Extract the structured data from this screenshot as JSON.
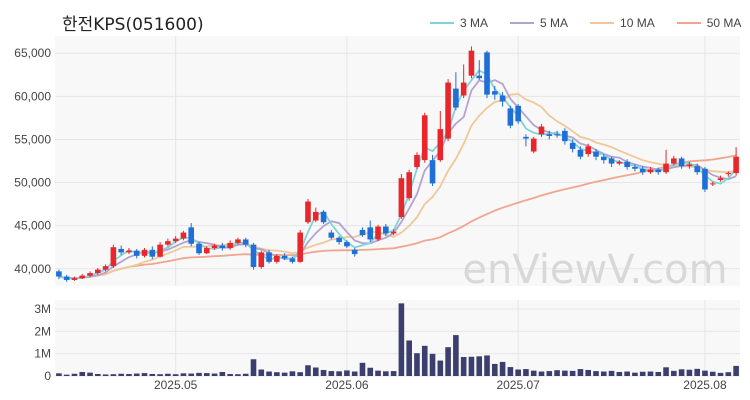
{
  "title": "한전KPS(051600)",
  "legend": [
    {
      "label": "3 MA",
      "color": "#7fd3d8"
    },
    {
      "label": "5 MA",
      "color": "#b3a3cf"
    },
    {
      "label": "10 MA",
      "color": "#f0c898"
    },
    {
      "label": "50 MA",
      "color": "#f2a58e"
    }
  ],
  "watermark": "enViewV.com",
  "colors": {
    "up": "#e8272d",
    "down": "#1f6fd6",
    "volume": "#3c3f6e",
    "grid": "#e6e6e6",
    "plot_bg": "#f8f8f8"
  },
  "chart_data": {
    "type": "candlestick",
    "price_axis": {
      "ticks": [
        "40,000",
        "45,000",
        "50,000",
        "55,000",
        "60,000",
        "65,000"
      ],
      "tick_values": [
        40000,
        45000,
        50000,
        55000,
        60000,
        65000
      ],
      "ylim": [
        38000,
        67000
      ]
    },
    "volume_axis": {
      "ticks": [
        "0",
        "1M",
        "2M",
        "3M"
      ],
      "tick_values": [
        0,
        1000000,
        2000000,
        3000000
      ],
      "ylim": [
        0,
        3400000
      ]
    },
    "x_ticks": [
      {
        "label": "2025.05",
        "index": 15
      },
      {
        "label": "2025.06",
        "index": 37
      },
      {
        "label": "2025.07",
        "index": 59
      },
      {
        "label": "2025.08",
        "index": 83
      }
    ],
    "candles": [
      [
        39700,
        39100,
        39900,
        38800
      ],
      [
        39100,
        38700,
        39300,
        38500
      ],
      [
        38700,
        38900,
        39100,
        38600
      ],
      [
        38900,
        39200,
        39400,
        38800
      ],
      [
        39200,
        39500,
        39700,
        39000
      ],
      [
        39500,
        39900,
        40100,
        39300
      ],
      [
        39900,
        40300,
        40500,
        39700
      ],
      [
        40300,
        42500,
        42800,
        40100
      ],
      [
        42300,
        41900,
        42700,
        41600
      ],
      [
        41900,
        42100,
        42400,
        41700
      ],
      [
        42100,
        41500,
        42300,
        41200
      ],
      [
        41500,
        42200,
        42400,
        41300
      ],
      [
        42200,
        41400,
        42600,
        41100
      ],
      [
        41400,
        42800,
        43100,
        41300
      ],
      [
        42800,
        43200,
        43500,
        42600
      ],
      [
        43200,
        43500,
        43800,
        43000
      ],
      [
        43500,
        44200,
        44400,
        43300
      ],
      [
        44800,
        42900,
        45300,
        42600
      ],
      [
        42900,
        41800,
        43100,
        41600
      ],
      [
        41800,
        42400,
        42600,
        41700
      ],
      [
        42400,
        42700,
        42900,
        42200
      ],
      [
        42700,
        42400,
        43000,
        42100
      ],
      [
        42400,
        43000,
        43300,
        42200
      ],
      [
        43000,
        43400,
        43600,
        42800
      ],
      [
        43400,
        42800,
        43600,
        42500
      ],
      [
        42800,
        40200,
        43000,
        39900
      ],
      [
        40200,
        41900,
        42100,
        40000
      ],
      [
        41900,
        40800,
        42200,
        40600
      ],
      [
        40800,
        41500,
        41700,
        40600
      ],
      [
        41500,
        41200,
        41800,
        41000
      ],
      [
        41200,
        40800,
        41400,
        40600
      ],
      [
        40800,
        44200,
        44500,
        40700
      ],
      [
        45400,
        47800,
        48100,
        45200
      ],
      [
        45600,
        46600,
        47100,
        45400
      ],
      [
        46600,
        45400,
        46800,
        45200
      ],
      [
        44200,
        43600,
        44500,
        43400
      ],
      [
        43600,
        43100,
        43800,
        42800
      ],
      [
        43100,
        42600,
        43300,
        42400
      ],
      [
        42200,
        41700,
        42400,
        41400
      ],
      [
        44500,
        43900,
        44800,
        43700
      ],
      [
        44800,
        43400,
        45600,
        43100
      ],
      [
        43400,
        44900,
        45100,
        43200
      ],
      [
        44900,
        44100,
        45200,
        43800
      ],
      [
        44100,
        44300,
        44600,
        43900
      ],
      [
        46000,
        50500,
        51000,
        45800
      ],
      [
        48200,
        51200,
        51500,
        47900
      ],
      [
        51800,
        53200,
        53500,
        51600
      ],
      [
        52600,
        57800,
        58100,
        52300
      ],
      [
        52600,
        49900,
        53200,
        49600
      ],
      [
        52600,
        56200,
        58300,
        52400
      ],
      [
        55100,
        61600,
        62000,
        54800
      ],
      [
        60900,
        58700,
        62800,
        58400
      ],
      [
        60100,
        61600,
        63700,
        59800
      ],
      [
        62400,
        65300,
        65800,
        62100
      ],
      [
        62400,
        62100,
        64200,
        61900
      ],
      [
        65100,
        60200,
        65300,
        59800
      ],
      [
        60600,
        60200,
        61200,
        59600
      ],
      [
        60100,
        59400,
        60500,
        58800
      ],
      [
        58600,
        56600,
        58900,
        56300
      ],
      [
        58900,
        57100,
        59100,
        56800
      ],
      [
        55300,
        55100,
        55600,
        54200
      ],
      [
        53600,
        55100,
        55300,
        53400
      ],
      [
        55600,
        56500,
        56800,
        55300
      ],
      [
        55600,
        55400,
        56000,
        55000
      ],
      [
        55600,
        55500,
        56000,
        55200
      ],
      [
        56000,
        54800,
        56300,
        54400
      ],
      [
        54600,
        53900,
        55000,
        53500
      ],
      [
        53800,
        53000,
        54200,
        52700
      ],
      [
        53300,
        54200,
        54500,
        53000
      ],
      [
        53600,
        53000,
        53900,
        52600
      ],
      [
        53000,
        52600,
        53300,
        52200
      ],
      [
        52800,
        52200,
        53000,
        51800
      ],
      [
        52200,
        52400,
        52600,
        52000
      ],
      [
        52400,
        51800,
        52700,
        51500
      ],
      [
        51800,
        51600,
        52100,
        51300
      ],
      [
        51600,
        51200,
        51900,
        50900
      ],
      [
        51200,
        51500,
        51800,
        51000
      ],
      [
        51500,
        51200,
        51700,
        50900
      ],
      [
        51200,
        52200,
        53800,
        51000
      ],
      [
        52200,
        52800,
        53100,
        52000
      ],
      [
        52800,
        51900,
        53000,
        51600
      ],
      [
        51900,
        52100,
        52400,
        51600
      ],
      [
        51900,
        51200,
        52200,
        50900
      ],
      [
        51600,
        49200,
        51800,
        48900
      ],
      [
        49800,
        49900,
        50100,
        49600
      ],
      [
        50300,
        50500,
        50800,
        50100
      ],
      [
        51000,
        51100,
        51300,
        50700
      ],
      [
        51100,
        53000,
        54100,
        50800
      ]
    ],
    "volume": [
      120000,
      60000,
      100000,
      180000,
      150000,
      90000,
      70000,
      80000,
      100000,
      90000,
      110000,
      130000,
      90000,
      80000,
      100000,
      80000,
      120000,
      110000,
      140000,
      130000,
      110000,
      180000,
      90000,
      80000,
      100000,
      750000,
      290000,
      200000,
      170000,
      150000,
      210000,
      170000,
      480000,
      380000,
      270000,
      220000,
      210000,
      250000,
      200000,
      590000,
      370000,
      240000,
      210000,
      220000,
      3250000,
      1590000,
      1020000,
      1350000,
      990000,
      690000,
      1290000,
      1830000,
      850000,
      860000,
      880000,
      920000,
      540000,
      630000,
      400000,
      290000,
      310000,
      240000,
      200000,
      220000,
      260000,
      240000,
      230000,
      310000,
      270000,
      220000,
      200000,
      230000,
      180000,
      200000,
      150000,
      190000,
      200000,
      180000,
      390000,
      230000,
      300000,
      280000,
      320000,
      240000,
      190000,
      140000,
      170000,
      450000
    ]
  }
}
